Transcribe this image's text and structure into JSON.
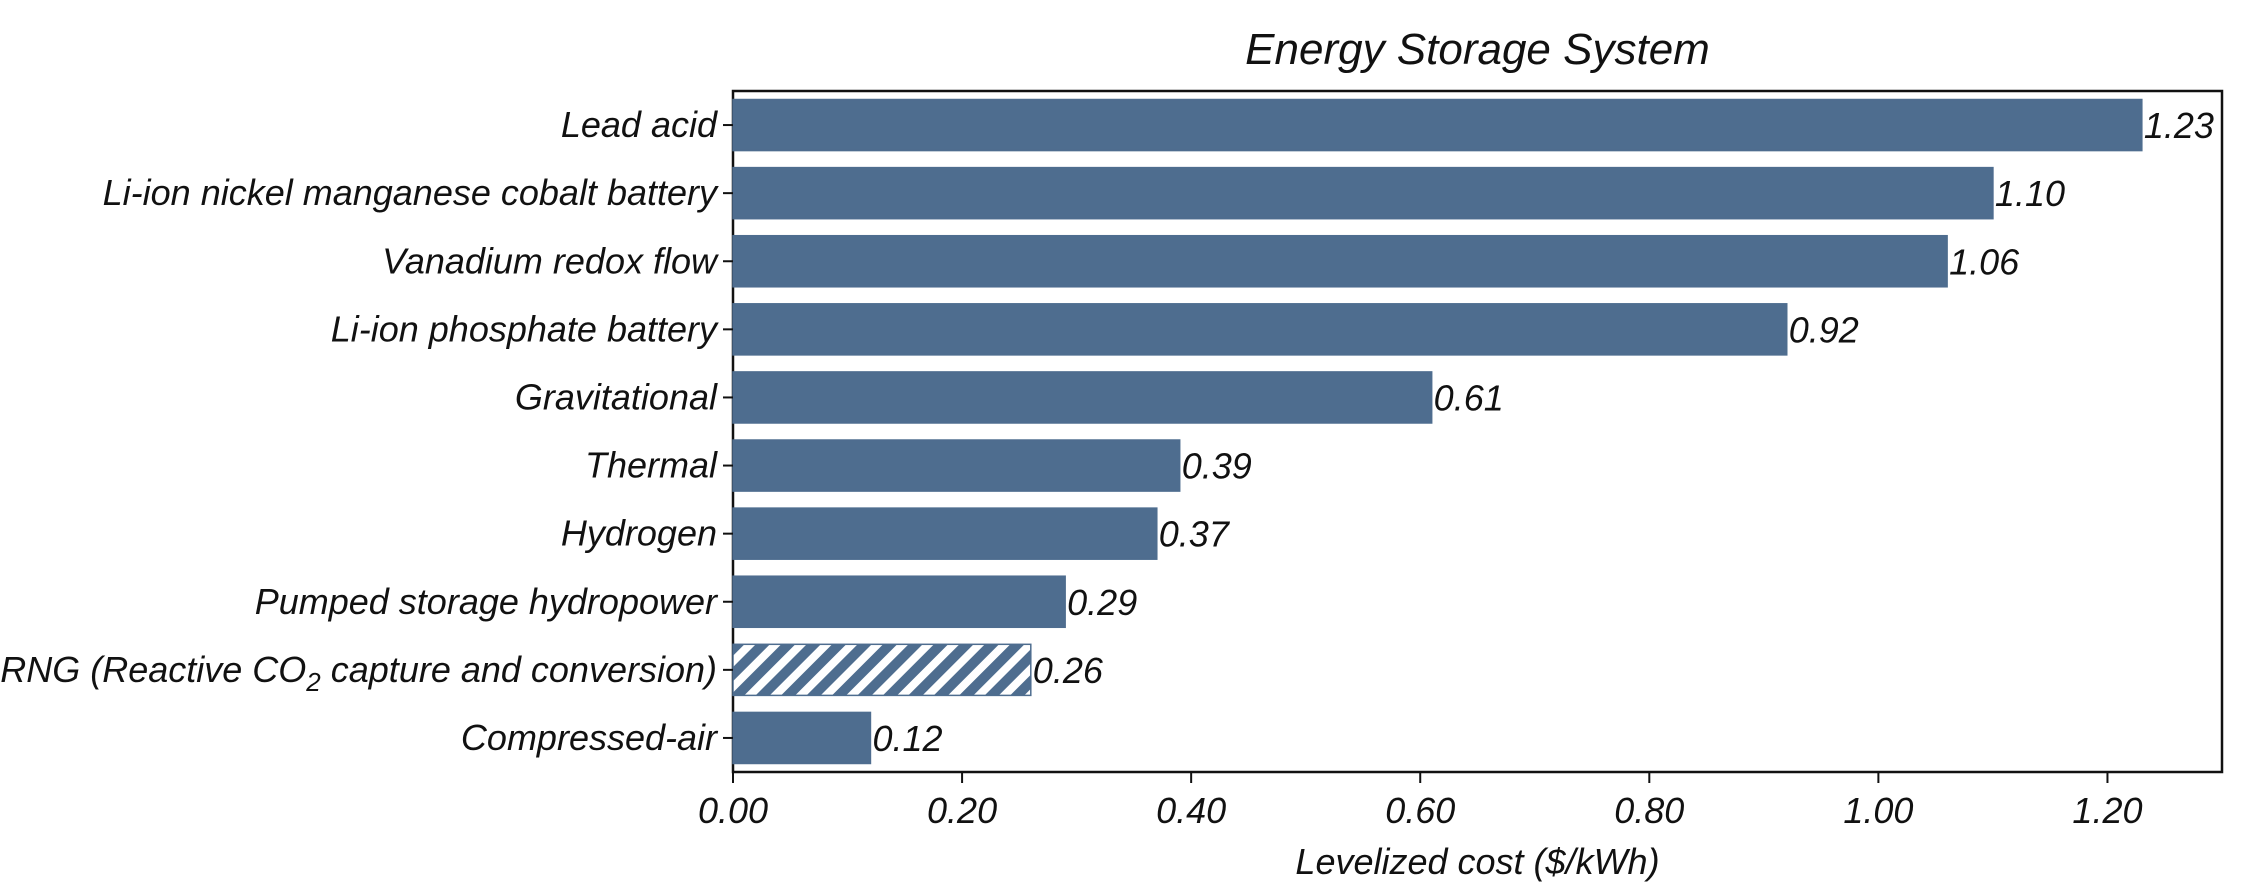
{
  "chart_data": {
    "type": "bar",
    "orientation": "horizontal",
    "title": "Energy Storage System",
    "xlabel": "Levelized cost ($/kWh)",
    "ylabel": "",
    "xlim": [
      0,
      1.3
    ],
    "xticks": [
      0,
      0.2,
      0.4,
      0.6,
      0.8,
      1.0,
      1.2
    ],
    "xtick_labels": [
      "0.00",
      "0.20",
      "0.40",
      "0.60",
      "0.80",
      "1.00",
      "1.20"
    ],
    "grid": false,
    "bar_color": "#4e6d8f",
    "categories": [
      {
        "pre": "Lead acid",
        "sub": "",
        "post": ""
      },
      {
        "pre": "Li-ion nickel manganese cobalt battery",
        "sub": "",
        "post": ""
      },
      {
        "pre": "Vanadium redox flow",
        "sub": "",
        "post": ""
      },
      {
        "pre": "Li-ion phosphate battery",
        "sub": "",
        "post": ""
      },
      {
        "pre": "Gravitational",
        "sub": "",
        "post": ""
      },
      {
        "pre": "Thermal",
        "sub": "",
        "post": ""
      },
      {
        "pre": "Hydrogen",
        "sub": "",
        "post": ""
      },
      {
        "pre": "Pumped storage hydropower",
        "sub": "",
        "post": ""
      },
      {
        "pre": "SRNG (Reactive CO",
        "sub": "2",
        "post": " capture and conversion)"
      },
      {
        "pre": "Compressed-air",
        "sub": "",
        "post": ""
      }
    ],
    "values": [
      1.23,
      1.1,
      1.06,
      0.92,
      0.61,
      0.39,
      0.37,
      0.29,
      0.26,
      0.12
    ],
    "value_labels": [
      "1.23",
      "1.10",
      "1.06",
      "0.92",
      "0.61",
      "0.39",
      "0.37",
      "0.29",
      "0.26",
      "0.12"
    ],
    "hatched": [
      false,
      false,
      false,
      false,
      false,
      false,
      false,
      false,
      true,
      false
    ]
  }
}
